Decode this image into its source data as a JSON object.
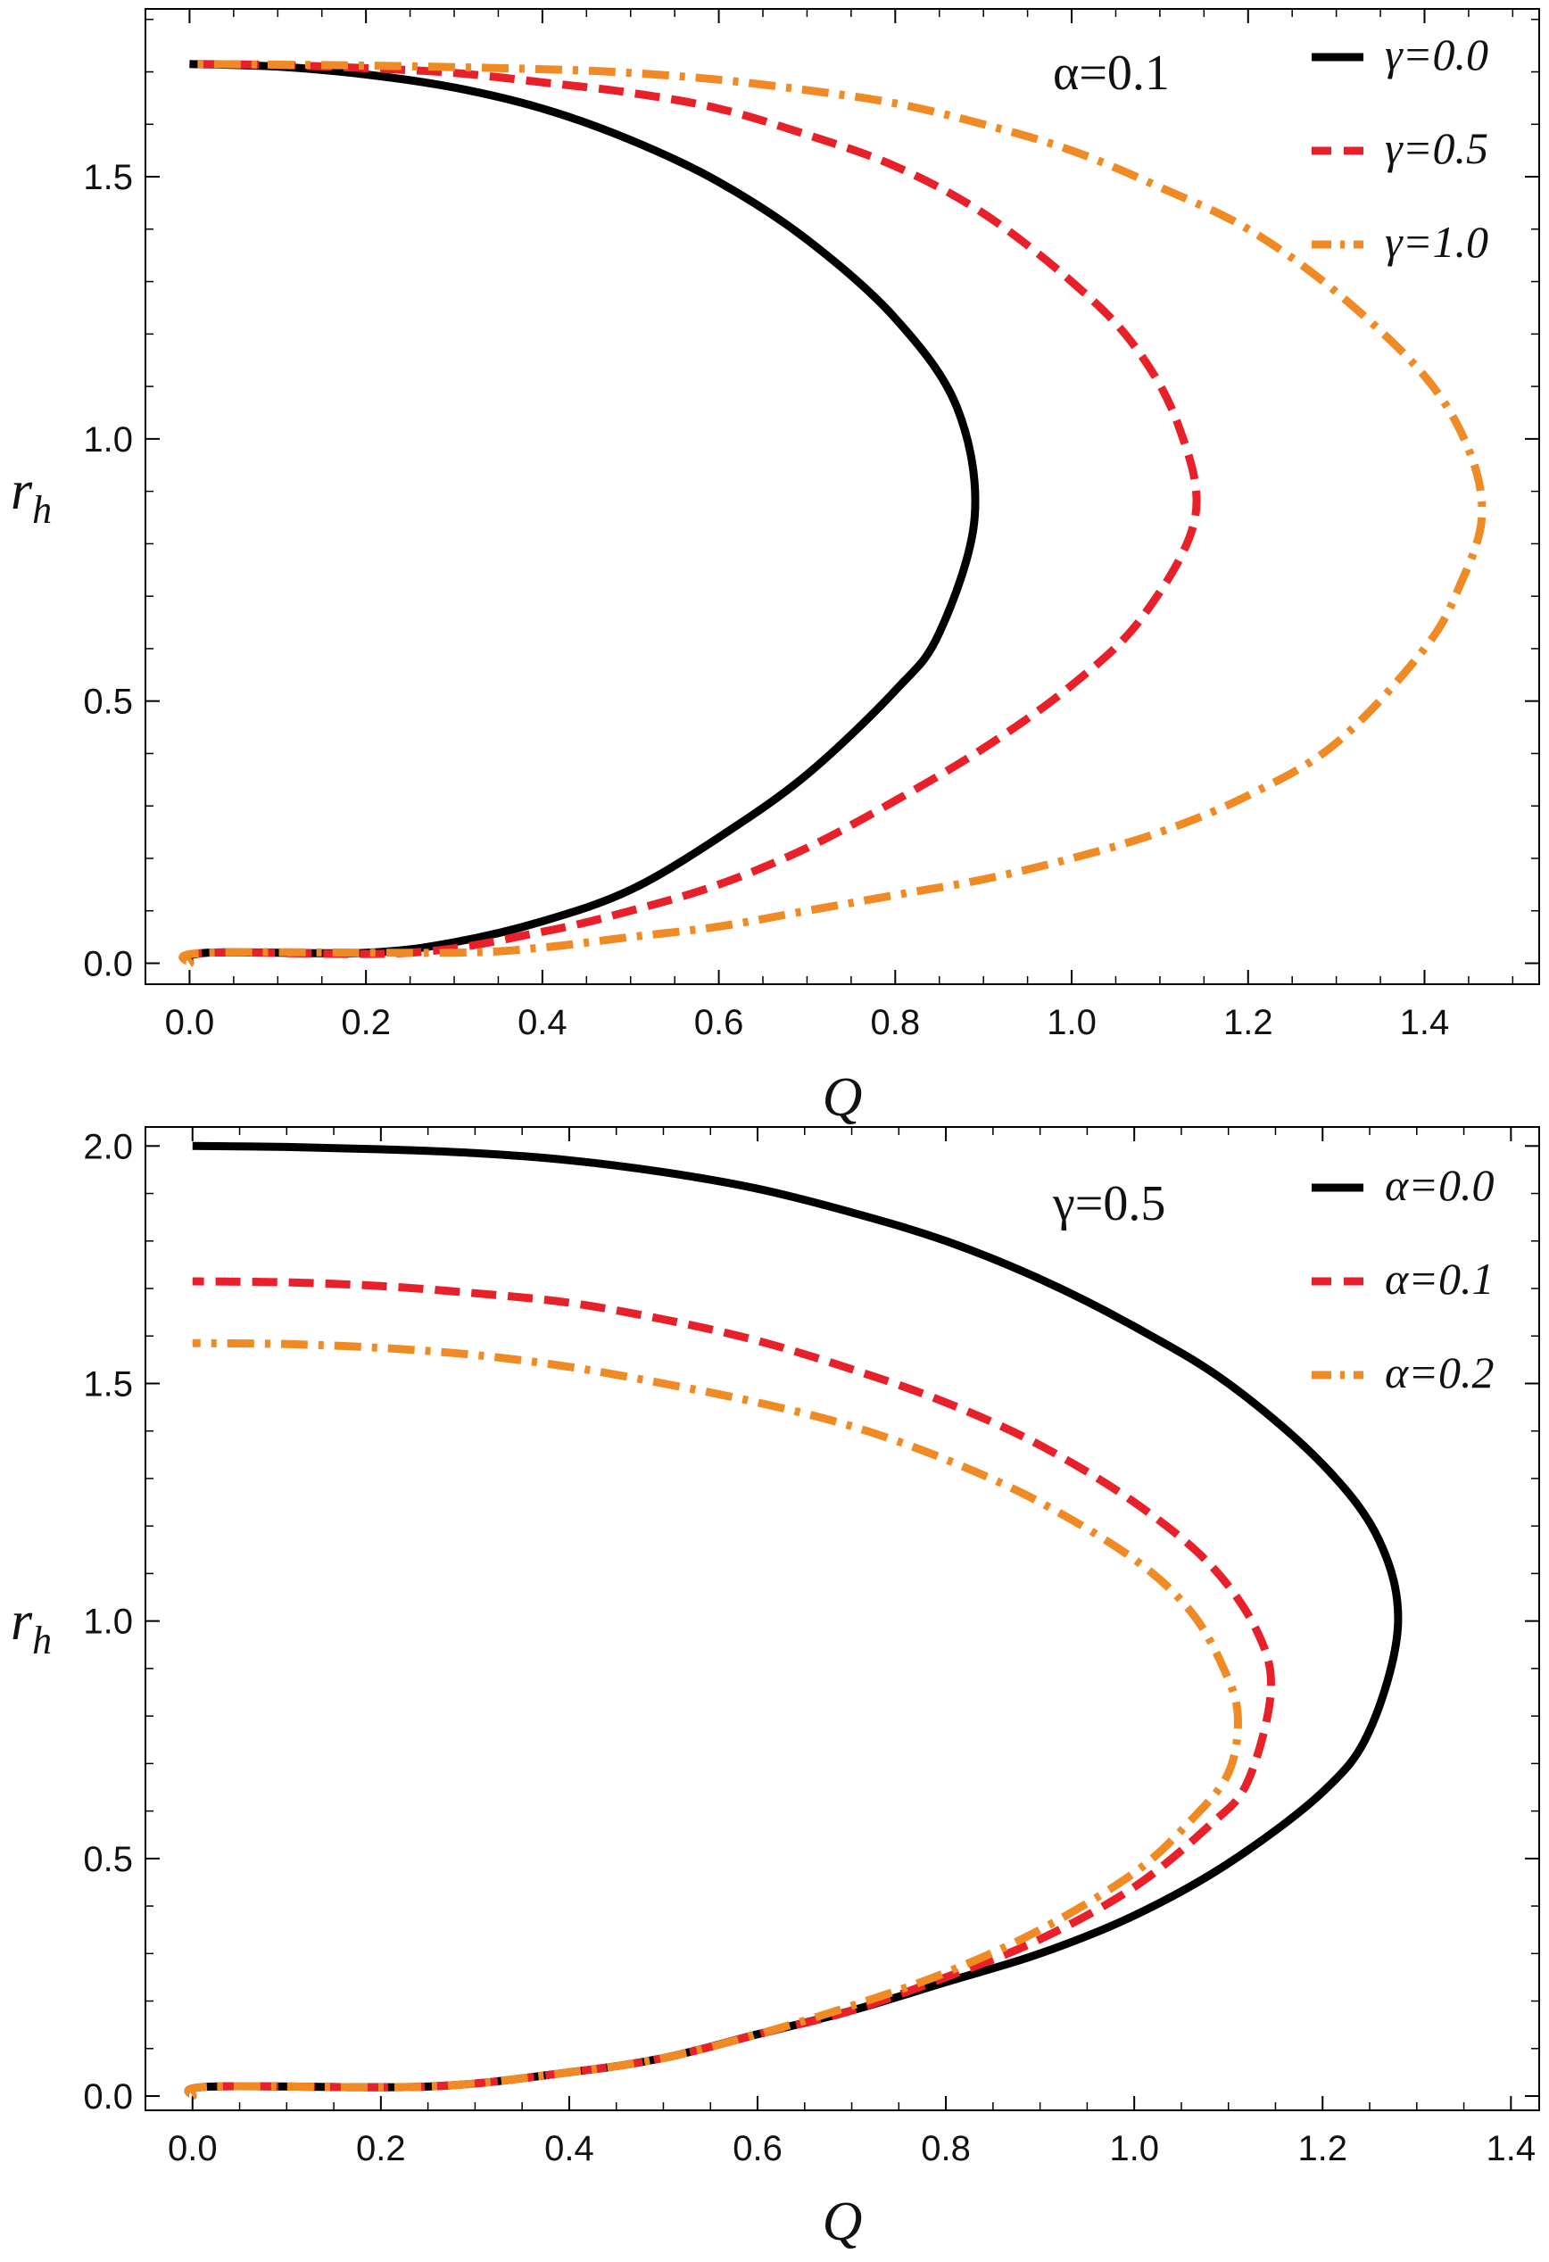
{
  "chart_data": [
    {
      "type": "line",
      "title": "",
      "xlabel": "Q",
      "ylabel": "r",
      "ylabel_sub": "h",
      "xlim": [
        -0.05,
        1.53
      ],
      "ylim": [
        -0.04,
        1.82
      ],
      "xticks": [
        0.0,
        0.2,
        0.4,
        0.6,
        0.8,
        1.0,
        1.2,
        1.4
      ],
      "xtick_labels": [
        "0.0",
        "0.2",
        "0.4",
        "0.6",
        "0.8",
        "1.0",
        "1.2",
        "1.4"
      ],
      "yticks": [
        0.0,
        0.5,
        1.0,
        1.5
      ],
      "ytick_labels": [
        "0.0",
        "0.5",
        "1.0",
        "1.5"
      ],
      "annotation": "α=0.1",
      "legend_position": "top-right",
      "series": [
        {
          "name": "γ=0.0",
          "style": "solid",
          "color": "#000000",
          "points": [
            [
              0.0,
              0.0
            ],
            [
              0.02,
              0.02
            ],
            [
              0.2,
              0.02
            ],
            [
              0.3,
              0.04
            ],
            [
              0.4,
              0.08
            ],
            [
              0.5,
              0.14
            ],
            [
              0.6,
              0.24
            ],
            [
              0.7,
              0.36
            ],
            [
              0.8,
              0.52
            ],
            [
              0.85,
              0.63
            ],
            [
              0.89,
              0.85
            ],
            [
              0.87,
              1.06
            ],
            [
              0.8,
              1.23
            ],
            [
              0.7,
              1.38
            ],
            [
              0.6,
              1.49
            ],
            [
              0.5,
              1.57
            ],
            [
              0.4,
              1.63
            ],
            [
              0.3,
              1.67
            ],
            [
              0.2,
              1.695
            ],
            [
              0.1,
              1.71
            ],
            [
              0.0,
              1.715
            ]
          ]
        },
        {
          "name": "γ=0.5",
          "style": "dashed",
          "color": "#e8202a",
          "points": [
            [
              0.0,
              0.0
            ],
            [
              0.02,
              0.02
            ],
            [
              0.25,
              0.02
            ],
            [
              0.4,
              0.06
            ],
            [
              0.5,
              0.1
            ],
            [
              0.6,
              0.15
            ],
            [
              0.7,
              0.22
            ],
            [
              0.8,
              0.31
            ],
            [
              0.9,
              0.41
            ],
            [
              1.0,
              0.53
            ],
            [
              1.08,
              0.66
            ],
            [
              1.14,
              0.85
            ],
            [
              1.12,
              1.03
            ],
            [
              1.07,
              1.18
            ],
            [
              1.0,
              1.3
            ],
            [
              0.9,
              1.43
            ],
            [
              0.8,
              1.52
            ],
            [
              0.7,
              1.58
            ],
            [
              0.6,
              1.63
            ],
            [
              0.5,
              1.66
            ],
            [
              0.4,
              1.68
            ],
            [
              0.3,
              1.698
            ],
            [
              0.2,
              1.707
            ],
            [
              0.1,
              1.713
            ],
            [
              0.0,
              1.715
            ]
          ]
        },
        {
          "name": "γ=1.0",
          "style": "dashdot",
          "color": "#f08a24",
          "points": [
            [
              0.0,
              0.0
            ],
            [
              0.02,
              0.02
            ],
            [
              0.3,
              0.02
            ],
            [
              0.4,
              0.03
            ],
            [
              0.5,
              0.05
            ],
            [
              0.6,
              0.07
            ],
            [
              0.7,
              0.1
            ],
            [
              0.8,
              0.13
            ],
            [
              0.9,
              0.16
            ],
            [
              1.0,
              0.2
            ],
            [
              1.1,
              0.25
            ],
            [
              1.2,
              0.32
            ],
            [
              1.3,
              0.42
            ],
            [
              1.4,
              0.6
            ],
            [
              1.44,
              0.72
            ],
            [
              1.465,
              0.85
            ],
            [
              1.45,
              0.98
            ],
            [
              1.4,
              1.12
            ],
            [
              1.3,
              1.28
            ],
            [
              1.2,
              1.4
            ],
            [
              1.1,
              1.48
            ],
            [
              1.0,
              1.55
            ],
            [
              0.9,
              1.6
            ],
            [
              0.8,
              1.64
            ],
            [
              0.7,
              1.665
            ],
            [
              0.6,
              1.685
            ],
            [
              0.5,
              1.698
            ],
            [
              0.4,
              1.705
            ],
            [
              0.2,
              1.712
            ],
            [
              0.0,
              1.715
            ]
          ]
        }
      ]
    },
    {
      "type": "line",
      "title": "",
      "xlabel": "Q",
      "ylabel": "r",
      "ylabel_sub": "h",
      "xlim": [
        -0.05,
        1.43
      ],
      "ylim": [
        -0.03,
        2.04
      ],
      "xticks": [
        0.0,
        0.2,
        0.4,
        0.6,
        0.8,
        1.0,
        1.2,
        1.4
      ],
      "xtick_labels": [
        "0.0",
        "0.2",
        "0.4",
        "0.6",
        "0.8",
        "1.0",
        "1.2",
        "1.4"
      ],
      "yticks": [
        0.0,
        0.5,
        1.0,
        1.5,
        2.0
      ],
      "ytick_labels": [
        "0.0",
        "0.5",
        "1.0",
        "1.5",
        "2.0"
      ],
      "annotation": "γ=0.5",
      "legend_position": "top-right",
      "series": [
        {
          "name": "α=0.0",
          "style": "solid",
          "color": "#000000",
          "points": [
            [
              0.0,
              0.0
            ],
            [
              0.02,
              0.02
            ],
            [
              0.25,
              0.02
            ],
            [
              0.4,
              0.05
            ],
            [
              0.5,
              0.08
            ],
            [
              0.6,
              0.13
            ],
            [
              0.7,
              0.18
            ],
            [
              0.8,
              0.24
            ],
            [
              0.9,
              0.3
            ],
            [
              1.0,
              0.38
            ],
            [
              1.1,
              0.49
            ],
            [
              1.2,
              0.64
            ],
            [
              1.25,
              0.77
            ],
            [
              1.28,
              0.99
            ],
            [
              1.26,
              1.17
            ],
            [
              1.2,
              1.33
            ],
            [
              1.1,
              1.5
            ],
            [
              1.0,
              1.62
            ],
            [
              0.9,
              1.72
            ],
            [
              0.8,
              1.8
            ],
            [
              0.7,
              1.86
            ],
            [
              0.6,
              1.91
            ],
            [
              0.5,
              1.945
            ],
            [
              0.4,
              1.97
            ],
            [
              0.3,
              1.985
            ],
            [
              0.2,
              1.993
            ],
            [
              0.1,
              1.998
            ],
            [
              0.0,
              2.0
            ]
          ]
        },
        {
          "name": "α=0.1",
          "style": "dashed",
          "color": "#e8202a",
          "points": [
            [
              0.0,
              0.0
            ],
            [
              0.02,
              0.02
            ],
            [
              0.25,
              0.02
            ],
            [
              0.4,
              0.05
            ],
            [
              0.5,
              0.08
            ],
            [
              0.6,
              0.13
            ],
            [
              0.7,
              0.18
            ],
            [
              0.8,
              0.25
            ],
            [
              0.9,
              0.33
            ],
            [
              1.0,
              0.44
            ],
            [
              1.08,
              0.57
            ],
            [
              1.12,
              0.66
            ],
            [
              1.145,
              0.85
            ],
            [
              1.13,
              0.98
            ],
            [
              1.08,
              1.12
            ],
            [
              1.0,
              1.25
            ],
            [
              0.9,
              1.37
            ],
            [
              0.8,
              1.46
            ],
            [
              0.7,
              1.53
            ],
            [
              0.6,
              1.59
            ],
            [
              0.5,
              1.635
            ],
            [
              0.4,
              1.67
            ],
            [
              0.3,
              1.69
            ],
            [
              0.2,
              1.705
            ],
            [
              0.1,
              1.713
            ],
            [
              0.0,
              1.715
            ]
          ]
        },
        {
          "name": "α=0.2",
          "style": "dashdot",
          "color": "#f08a24",
          "points": [
            [
              0.0,
              0.0
            ],
            [
              0.02,
              0.02
            ],
            [
              0.25,
              0.02
            ],
            [
              0.4,
              0.05
            ],
            [
              0.5,
              0.08
            ],
            [
              0.6,
              0.13
            ],
            [
              0.7,
              0.19
            ],
            [
              0.8,
              0.26
            ],
            [
              0.9,
              0.35
            ],
            [
              1.0,
              0.47
            ],
            [
              1.06,
              0.58
            ],
            [
              1.1,
              0.68
            ],
            [
              1.11,
              0.8
            ],
            [
              1.095,
              0.9
            ],
            [
              1.06,
              1.02
            ],
            [
              1.0,
              1.13
            ],
            [
              0.9,
              1.25
            ],
            [
              0.8,
              1.34
            ],
            [
              0.7,
              1.41
            ],
            [
              0.6,
              1.46
            ],
            [
              0.5,
              1.5
            ],
            [
              0.4,
              1.535
            ],
            [
              0.3,
              1.56
            ],
            [
              0.2,
              1.575
            ],
            [
              0.1,
              1.583
            ],
            [
              0.0,
              1.585
            ]
          ]
        }
      ]
    }
  ]
}
